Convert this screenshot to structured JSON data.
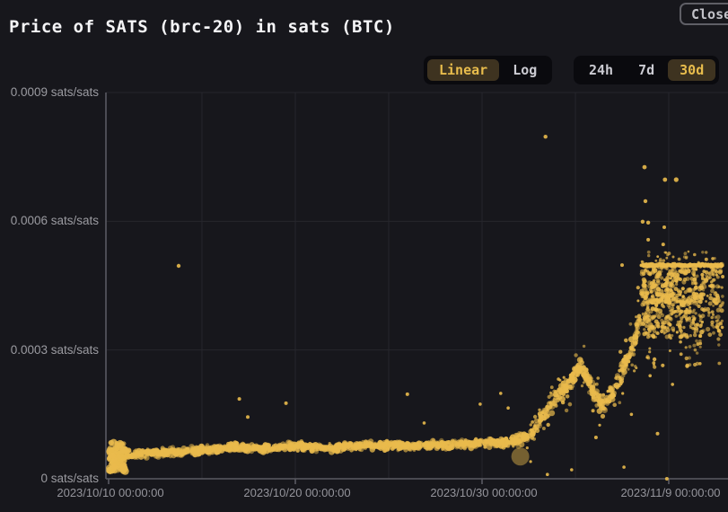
{
  "header": {
    "title": "Price of SATS (brc-20) in sats (BTC)",
    "close_label": "Close"
  },
  "controls": {
    "scale_toggle": {
      "options": [
        {
          "label": "Linear",
          "selected": true
        },
        {
          "label": "Log",
          "selected": false
        }
      ]
    },
    "range_toggle": {
      "options": [
        {
          "label": "24h",
          "selected": false
        },
        {
          "label": "7d",
          "selected": false
        },
        {
          "label": "30d",
          "selected": true
        }
      ]
    }
  },
  "colors": {
    "background": "#17171c",
    "toggle_panel": "#0a0a0e",
    "selected_pill_bg": "#3e3320",
    "accent_gold": "#e9ba4c",
    "axis": "#5a5a62",
    "grid": "#26262c",
    "y_label_text": "#9b9ba1",
    "x_label_text": "#94949b",
    "title_text": "#f5f5f7"
  },
  "chart_data": {
    "type": "scatter",
    "title": "Price of SATS (brc-20) in sats (BTC)",
    "unit": "sats/sats",
    "legend": "none",
    "grid": true,
    "x_axis": {
      "tick_days": [
        0,
        10,
        20,
        30
      ],
      "tick_labels": [
        "2023/10/10 00:00:00",
        "2023/10/20 00:00:00",
        "2023/10/30 00:00:00",
        "2023/11/9 00:00:00"
      ],
      "grid_days": [
        5,
        10,
        15,
        20,
        25,
        30
      ],
      "day_span": 33
    },
    "y_axis": {
      "min": 0,
      "max": 0.0009,
      "ticks": [
        0,
        0.0003,
        0.0006,
        0.0009
      ],
      "tick_labels": [
        "0 sats/sats",
        "0.0003 sats/sats",
        "0.0006 sats/sats",
        "0.0009 sats/sats"
      ]
    },
    "trend": [
      [
        0,
        5.2e-05
      ],
      [
        2,
        6e-05
      ],
      [
        4,
        6.3e-05
      ],
      [
        6,
        7e-05
      ],
      [
        7,
        7.4e-05
      ],
      [
        8,
        7e-05
      ],
      [
        10,
        7.7e-05
      ],
      [
        12,
        7.2e-05
      ],
      [
        14,
        7.8e-05
      ],
      [
        16,
        7.6e-05
      ],
      [
        18,
        8e-05
      ],
      [
        20,
        8.2e-05
      ],
      [
        21.5,
        8.5e-05
      ],
      [
        22.5,
        0.0001
      ],
      [
        23.2,
        0.00014
      ],
      [
        24.0,
        0.00019
      ],
      [
        25.0,
        0.000245
      ],
      [
        25.3,
        0.00026
      ],
      [
        25.9,
        0.00021
      ],
      [
        26.5,
        0.000165
      ],
      [
        27.0,
        0.0002
      ],
      [
        27.6,
        0.00026
      ],
      [
        28.1,
        0.00031
      ],
      [
        28.5,
        0.00038
      ],
      [
        28.8,
        0.00042
      ]
    ],
    "spread": [
      [
        0,
        2e-05
      ],
      [
        1,
        1.2e-05
      ],
      [
        21,
        1.1e-05
      ],
      [
        22.5,
        1.6e-05
      ],
      [
        24,
        2.2e-05
      ],
      [
        28.5,
        2.5e-05
      ]
    ],
    "start_blob": {
      "day_start": 0,
      "day_end": 0.9,
      "value_min": 1.5e-05,
      "value_max": 8.5e-05
    },
    "dense_block": {
      "day_start": 28.55,
      "day_end": 32.9,
      "value_top": 0.0005,
      "value_bottom": 0.00026
    },
    "big_trade_point": {
      "day": 22.05,
      "value": 5.2e-05,
      "radius": 10,
      "opacity": 0.45
    },
    "outliers": [
      [
        3.75,
        0.000496,
        2.2
      ],
      [
        7.0,
        0.000186,
        2.0
      ],
      [
        7.45,
        0.000144,
        2.0
      ],
      [
        9.5,
        0.000176,
        2.0
      ],
      [
        16.0,
        0.000197,
        2.0
      ],
      [
        16.9,
        0.00013,
        1.8
      ],
      [
        19.9,
        0.000174,
        1.8
      ],
      [
        21.0,
        0.000199,
        1.8
      ],
      [
        21.4,
        0.000165,
        1.8
      ],
      [
        23.4,
        0.000797,
        2.2
      ],
      [
        27.5,
        0.000498,
        2.0
      ],
      [
        28.7,
        0.000726,
        2.4
      ],
      [
        29.8,
        0.000697,
        2.4
      ],
      [
        30.4,
        0.000697,
        2.6
      ],
      [
        28.75,
        0.000647,
        2.2
      ],
      [
        28.6,
        0.000599,
        2.2
      ],
      [
        28.9,
        0.000597,
        2.2
      ],
      [
        29.76,
        0.000586,
        2.0
      ],
      [
        28.9,
        0.000557,
        2.0
      ],
      [
        29.7,
        0.000546,
        2.0
      ],
      [
        23.5,
        1e-05,
        1.8
      ],
      [
        24.8,
        2.1e-05,
        1.8
      ],
      [
        26.1,
        9.63e-05,
        2.0
      ],
      [
        27.6,
        2.7e-05,
        1.8
      ],
      [
        29.4,
        0.000105,
        2.0
      ],
      [
        22.6,
        4e-05,
        1.6
      ],
      [
        29.0,
        0.00024,
        1.8
      ],
      [
        30.2,
        0.00022,
        1.8
      ],
      [
        28.0,
        0.00015,
        1.8
      ],
      [
        26.3,
        0.000125,
        1.6
      ],
      [
        29.9,
        0.0,
        2.0
      ]
    ]
  }
}
